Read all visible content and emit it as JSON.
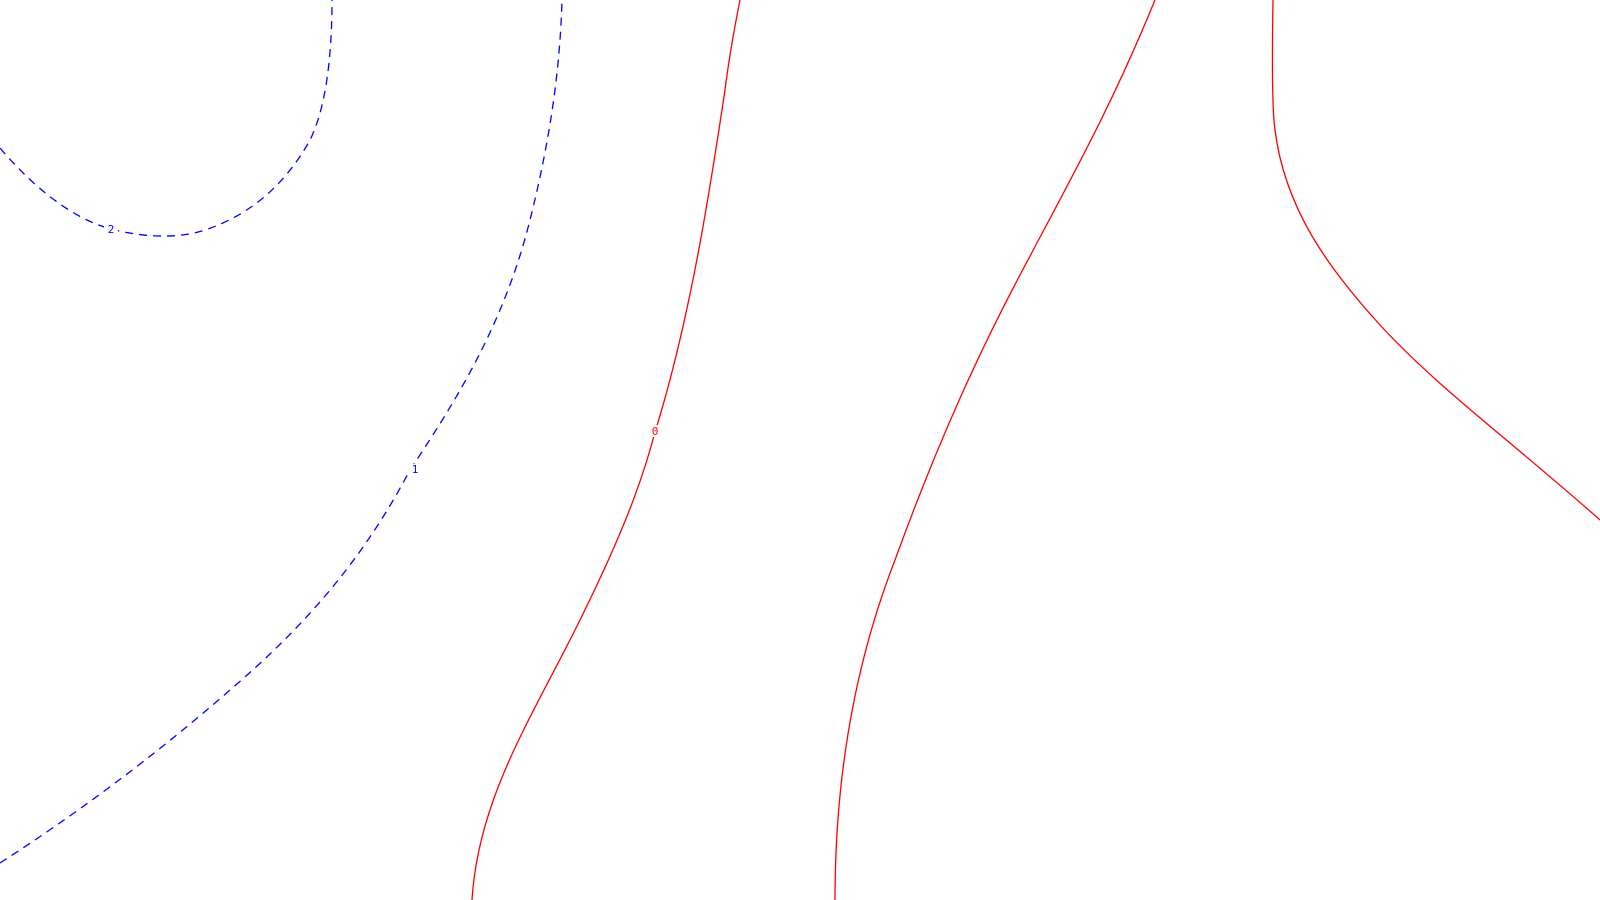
{
  "canvas": {
    "background": "#ffffff"
  },
  "style": {
    "positive_color": "#0000ff",
    "zero_color": "#ff0000",
    "positive_line": "dashed",
    "zero_line": "solid"
  },
  "contours": [
    {
      "id": "contour-2",
      "level": "2",
      "kind": "positive"
    },
    {
      "id": "contour-1",
      "level": "1",
      "kind": "positive"
    },
    {
      "id": "contour-0-a",
      "level": "0",
      "kind": "zero"
    },
    {
      "id": "contour-0-b",
      "level": "",
      "kind": "zero"
    },
    {
      "id": "contour-0-c",
      "level": "",
      "kind": "zero"
    }
  ]
}
